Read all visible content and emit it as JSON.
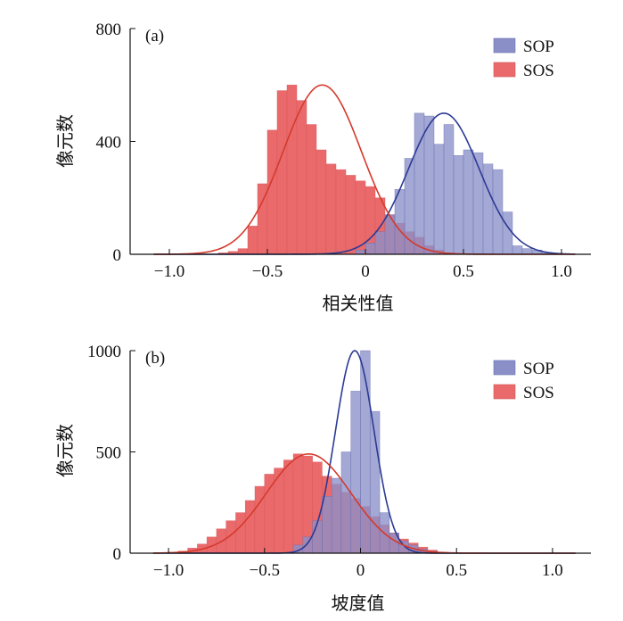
{
  "colors": {
    "sop_fill": "#8a8fc8",
    "sop_line": "#2b3a94",
    "sos_fill": "#ea6a6c",
    "sos_line": "#d43a2c",
    "overlap_fill": "#7a3f86"
  },
  "chart_data": [
    {
      "type": "bar",
      "panel_label": "(a)",
      "xlabel": "相关性值",
      "ylabel": "像元数",
      "xlim": [
        -1.2,
        1.15
      ],
      "ylim": [
        0,
        800
      ],
      "xticks": [
        -1.0,
        -0.5,
        0,
        0.5,
        1.0
      ],
      "xtick_labels": [
        "−1.0",
        "−0.5",
        "0",
        "0.5",
        "1.0"
      ],
      "yticks": [
        0,
        400,
        800
      ],
      "ytick_labels": [
        "0",
        "400",
        "800"
      ],
      "bin_width": 0.05,
      "legend": {
        "position": "top-right",
        "entries": [
          "SOP",
          "SOS"
        ]
      },
      "series": [
        {
          "name": "SOP",
          "bin_centers": [
            -0.025,
            0.025,
            0.075,
            0.125,
            0.175,
            0.225,
            0.275,
            0.325,
            0.375,
            0.425,
            0.475,
            0.525,
            0.575,
            0.625,
            0.675,
            0.725,
            0.775,
            0.825,
            0.875,
            0.925
          ],
          "values": [
            15,
            40,
            80,
            140,
            230,
            340,
            500,
            490,
            390,
            460,
            350,
            370,
            360,
            320,
            300,
            150,
            30,
            20,
            15,
            5
          ],
          "fit": {
            "mean": 0.4,
            "sd": 0.18,
            "peak": 500
          }
        },
        {
          "name": "SOS",
          "bin_centers": [
            -0.725,
            -0.675,
            -0.625,
            -0.575,
            -0.525,
            -0.475,
            -0.425,
            -0.375,
            -0.325,
            -0.275,
            -0.225,
            -0.175,
            -0.125,
            -0.075,
            -0.025,
            0.025,
            0.075,
            0.125,
            0.175,
            0.225,
            0.275,
            0.325,
            0.375,
            0.425
          ],
          "values": [
            5,
            10,
            20,
            100,
            250,
            440,
            580,
            600,
            545,
            460,
            370,
            320,
            300,
            280,
            260,
            240,
            200,
            140,
            110,
            80,
            60,
            30,
            15,
            5
          ],
          "fit": {
            "mean": -0.22,
            "sd": 0.2,
            "peak": 600
          }
        }
      ]
    },
    {
      "type": "bar",
      "panel_label": "(b)",
      "xlabel": "坡度值",
      "ylabel": "像元数",
      "xlim": [
        -1.2,
        1.2
      ],
      "ylim": [
        0,
        1000
      ],
      "xticks": [
        -1.0,
        -0.5,
        0,
        0.5,
        1.0
      ],
      "xtick_labels": [
        "−1.0",
        "−0.5",
        "0",
        "0.5",
        "1.0"
      ],
      "yticks": [
        0,
        500,
        1000
      ],
      "ytick_labels": [
        "0",
        "500",
        "1000"
      ],
      "bin_width": 0.05,
      "legend": {
        "position": "top-right",
        "entries": [
          "SOP",
          "SOS"
        ]
      },
      "series": [
        {
          "name": "SOP",
          "bin_centers": [
            -0.325,
            -0.275,
            -0.225,
            -0.175,
            -0.125,
            -0.075,
            -0.025,
            0.025,
            0.075,
            0.125,
            0.175,
            0.225,
            0.275,
            0.325,
            0.375
          ],
          "values": [
            40,
            80,
            160,
            280,
            370,
            500,
            800,
            1000,
            700,
            200,
            100,
            60,
            40,
            20,
            10
          ],
          "fit": {
            "mean": -0.03,
            "sd": 0.1,
            "peak": 1000
          }
        },
        {
          "name": "SOS",
          "bin_centers": [
            -0.975,
            -0.925,
            -0.875,
            -0.825,
            -0.775,
            -0.725,
            -0.675,
            -0.625,
            -0.575,
            -0.525,
            -0.475,
            -0.425,
            -0.375,
            -0.325,
            -0.275,
            -0.225,
            -0.175,
            -0.125,
            -0.075,
            -0.025,
            0.025,
            0.075,
            0.125,
            0.175,
            0.225,
            0.275,
            0.325,
            0.375,
            0.425
          ],
          "values": [
            5,
            10,
            25,
            45,
            80,
            120,
            160,
            200,
            260,
            330,
            390,
            420,
            460,
            490,
            480,
            450,
            380,
            340,
            300,
            270,
            230,
            180,
            140,
            100,
            70,
            50,
            30,
            15,
            5
          ],
          "fit": {
            "mean": -0.27,
            "sd": 0.22,
            "peak": 490
          }
        }
      ]
    }
  ]
}
